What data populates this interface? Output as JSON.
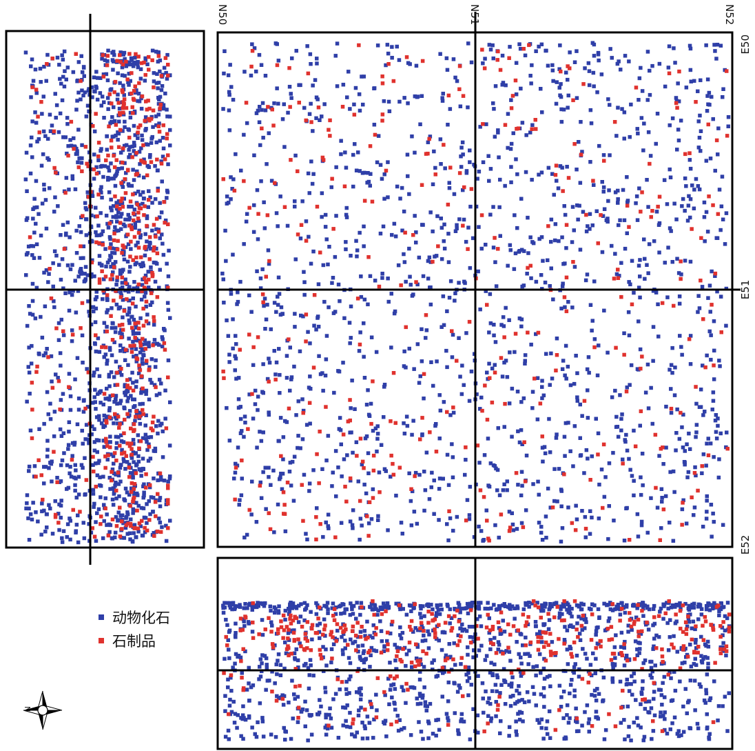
{
  "colors": {
    "fauna": "#2f3fa8",
    "lithic": "#e0322e",
    "frame": "#000000"
  },
  "axes": {
    "top_labels": [
      "N50",
      "N51",
      "N52"
    ],
    "right_labels": [
      "E50",
      "E51",
      "E52"
    ]
  },
  "legend": {
    "items": [
      {
        "label": "动物化石",
        "color": "#2f3fa8"
      },
      {
        "label": "石制品",
        "color": "#e0322e"
      }
    ]
  },
  "compass": {
    "letter": "N",
    "icon": "compass-rose-icon"
  },
  "chart_data": [
    {
      "type": "scatter",
      "view": "plan",
      "x_range": [
        "N50",
        "N52"
      ],
      "y_range": [
        "E50",
        "E52"
      ],
      "grid": true,
      "grid_lines": {
        "x": [
          "N51"
        ],
        "y": [
          "E51"
        ]
      },
      "series": [
        {
          "name": "动物化石",
          "color": "#2f3fa8",
          "approx_points": 1450
        },
        {
          "name": "石制品",
          "color": "#e0322e",
          "approx_points": 330
        }
      ]
    },
    {
      "type": "scatter",
      "view": "section-left",
      "grid": true,
      "series": [
        {
          "name": "动物化石",
          "color": "#2f3fa8",
          "approx_points": 1350
        },
        {
          "name": "石制品",
          "color": "#e0322e",
          "approx_points": 420
        }
      ]
    },
    {
      "type": "scatter",
      "view": "section-bottom",
      "grid": true,
      "series": [
        {
          "name": "动物化石",
          "color": "#2f3fa8",
          "approx_points": 1300
        },
        {
          "name": "石制品",
          "color": "#e0322e",
          "approx_points": 360
        }
      ]
    }
  ]
}
